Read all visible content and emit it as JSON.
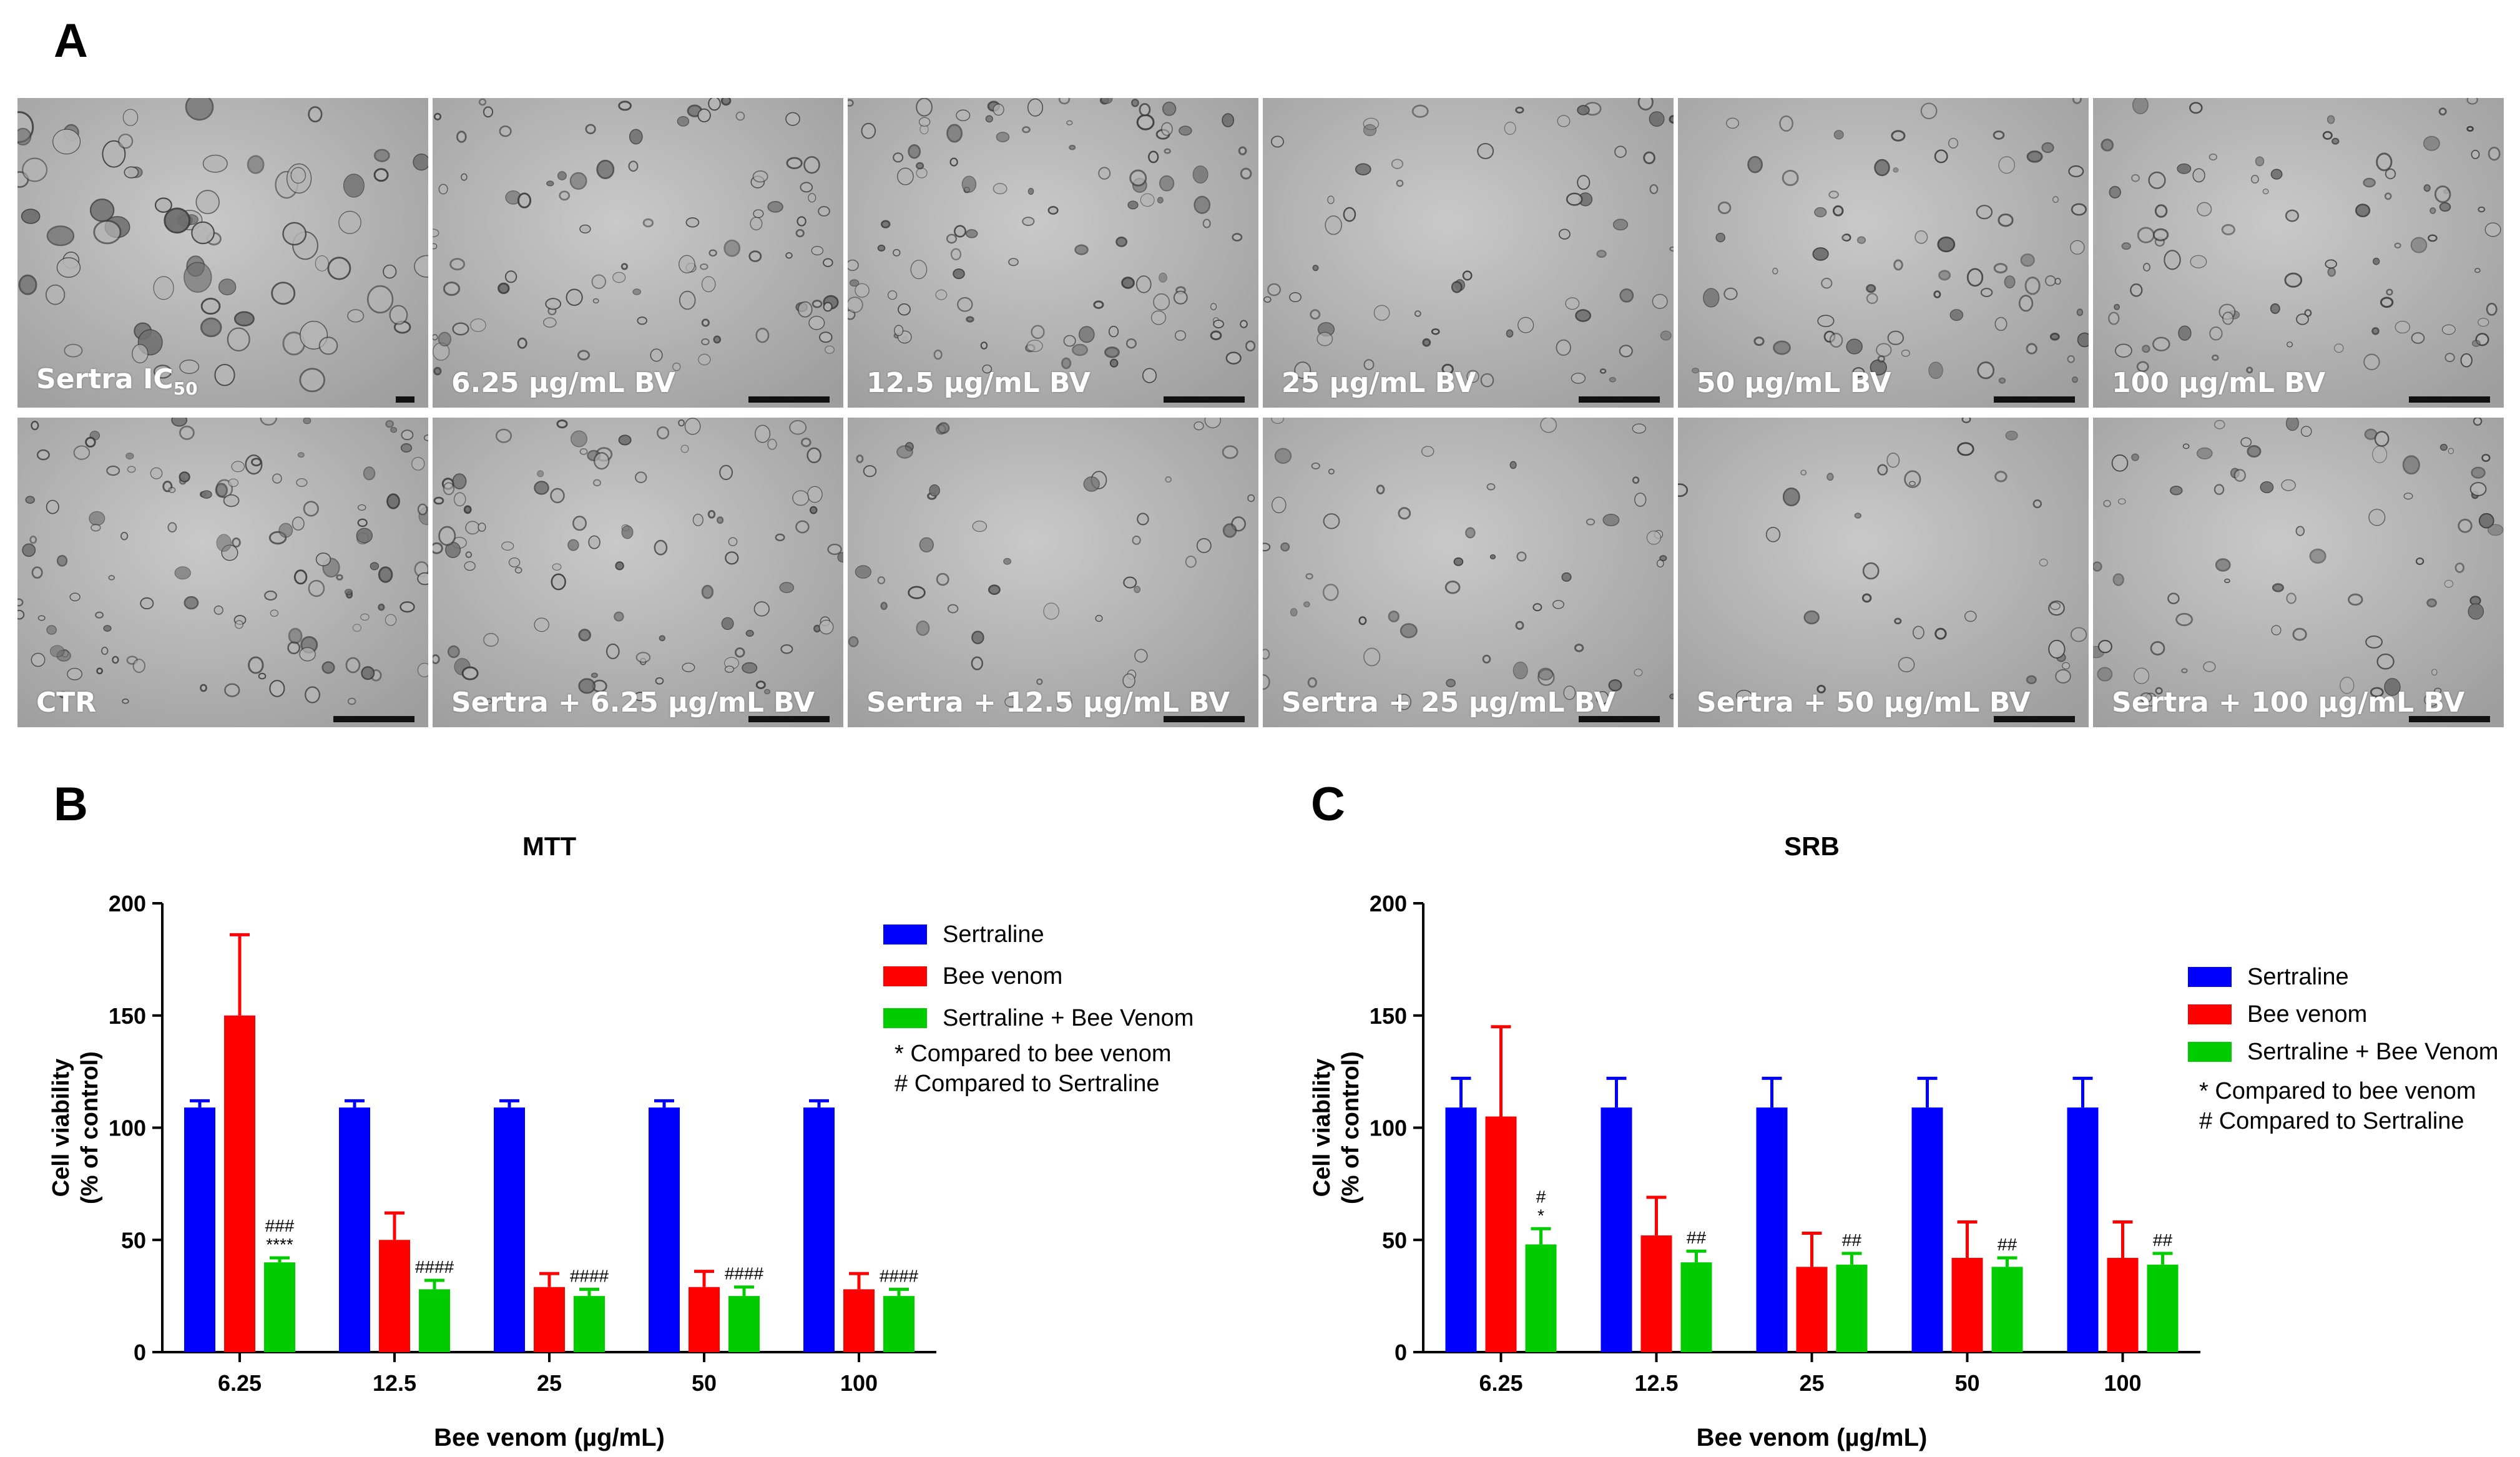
{
  "panels": {
    "a": "A",
    "b": "B",
    "c": "C"
  },
  "micrographs": {
    "top_row": [
      "Sertra IC",
      "6.25 µg/mL BV",
      "12.5 µg/mL BV",
      "25 µg/mL BV",
      "50 µg/mL BV",
      "100 µg/mL BV"
    ],
    "top_first_subscript": "50",
    "bottom_row": [
      "CTR",
      "Sertra + 6.25 µg/mL BV",
      "Sertra + 12.5 µg/mL BV",
      "Sertra + 25 µg/mL BV",
      "Sertra + 50 µg/mL BV",
      "Sertra + 100 µg/mL BV"
    ]
  },
  "colors": {
    "sertraline": "#0000ff",
    "bee_venom": "#ff0000",
    "combo": "#00cc00"
  },
  "chart_data": [
    {
      "type": "bar",
      "title": "MTT",
      "xlabel": "Bee venom (µg/mL)",
      "ylabel": "Cell viability",
      "ylabel2": "(% of control)",
      "ylim": [
        0,
        200
      ],
      "yticks": [
        0,
        50,
        100,
        150,
        200
      ],
      "categories": [
        "6.25",
        "12.5",
        "25",
        "50",
        "100"
      ],
      "series": [
        {
          "name": "Sertraline",
          "values": [
            109,
            109,
            109,
            109,
            109
          ],
          "errors": [
            3,
            3,
            3,
            3,
            3
          ]
        },
        {
          "name": "Bee venom",
          "values": [
            150,
            50,
            29,
            29,
            28
          ],
          "errors": [
            36,
            12,
            6,
            7,
            7
          ]
        },
        {
          "name": "Sertraline + Bee Venom",
          "values": [
            40,
            28,
            25,
            25,
            25
          ],
          "errors": [
            2,
            4,
            3,
            4,
            3
          ]
        }
      ],
      "annotations": [
        {
          "category": "6.25",
          "series": 2,
          "lines": [
            "###",
            "****"
          ]
        },
        {
          "category": "12.5",
          "series": 2,
          "lines": [
            "####"
          ]
        },
        {
          "category": "25",
          "series": 2,
          "lines": [
            "####"
          ]
        },
        {
          "category": "50",
          "series": 2,
          "lines": [
            "####"
          ]
        },
        {
          "category": "100",
          "series": 2,
          "lines": [
            "####"
          ]
        }
      ],
      "notes": [
        "* Compared to bee venom",
        "# Compared to Sertraline"
      ],
      "legend": "right"
    },
    {
      "type": "bar",
      "title": "SRB",
      "xlabel": "Bee venom (µg/mL)",
      "ylabel": "Cell viability",
      "ylabel2": "(% of control)",
      "ylim": [
        0,
        200
      ],
      "yticks": [
        0,
        50,
        100,
        150,
        200
      ],
      "categories": [
        "6.25",
        "12.5",
        "25",
        "50",
        "100"
      ],
      "series": [
        {
          "name": "Sertraline",
          "values": [
            109,
            109,
            109,
            109,
            109
          ],
          "errors": [
            13,
            13,
            13,
            13,
            13
          ]
        },
        {
          "name": "Bee venom",
          "values": [
            105,
            52,
            38,
            42,
            42
          ],
          "errors": [
            40,
            17,
            15,
            16,
            16
          ]
        },
        {
          "name": "Sertraline + Bee Venom",
          "values": [
            48,
            40,
            39,
            38,
            39
          ],
          "errors": [
            7,
            5,
            5,
            4,
            5
          ]
        }
      ],
      "annotations": [
        {
          "category": "6.25",
          "series": 2,
          "lines": [
            "#",
            "*"
          ]
        },
        {
          "category": "12.5",
          "series": 2,
          "lines": [
            "##"
          ]
        },
        {
          "category": "25",
          "series": 2,
          "lines": [
            "##"
          ]
        },
        {
          "category": "50",
          "series": 2,
          "lines": [
            "##"
          ]
        },
        {
          "category": "100",
          "series": 2,
          "lines": [
            "##"
          ]
        }
      ],
      "notes": [
        "* Compared to bee venom",
        "# Compared to Sertraline"
      ],
      "legend": "right"
    }
  ]
}
